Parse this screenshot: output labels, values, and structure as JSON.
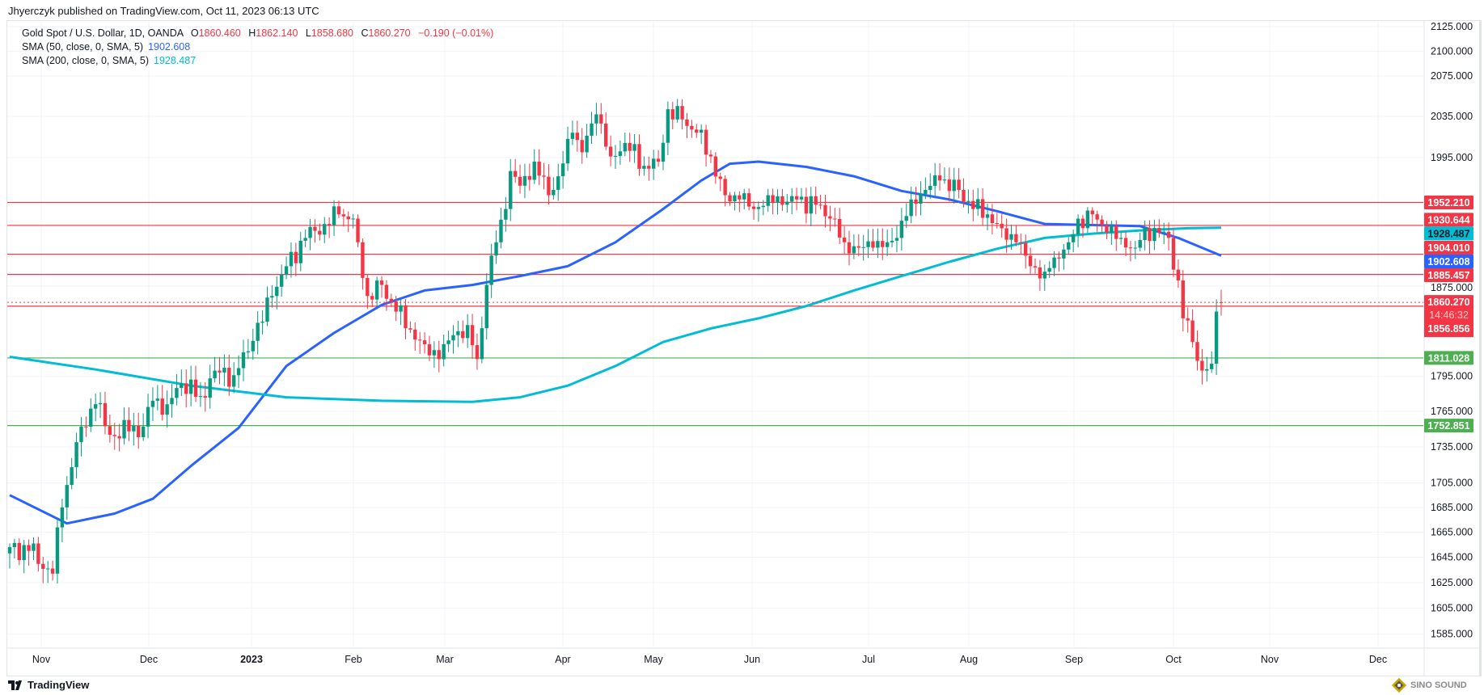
{
  "publisher": "Jhyerczyk published on TradingView.com, Oct 11, 2023 06:13 UTC",
  "legend": {
    "symbol": "Gold Spot / U.S. Dollar, 1D, OANDA",
    "o_label": "O",
    "o": "1860.460",
    "h_label": "H",
    "h": "1862.140",
    "l_label": "L",
    "l": "1858.680",
    "c_label": "C",
    "c": "1860.270",
    "change": "−0.190 (−0.01%)",
    "sma50_label": "SMA (50, close, 0, SMA, 5)",
    "sma50": "1902.608",
    "sma200_label": "SMA (200, close, 0, SMA, 5)",
    "sma200": "1928.487"
  },
  "footer": {
    "brand": "TradingView",
    "watermark": "SINO SOUND"
  },
  "colors": {
    "up": "#089981",
    "down": "#f23645",
    "sma50": "#2962ff",
    "sma200": "#00bcd4",
    "resistance": "#f23645",
    "support": "#4caf50"
  },
  "chart_data": {
    "type": "candlestick",
    "title": "Gold Spot / U.S. Dollar, 1D, OANDA",
    "yscale": "log",
    "ylim": [
      1585,
      2125
    ],
    "y_ticks": [
      "2125.000",
      "2100.000",
      "2075.000",
      "2035.000",
      "1995.000",
      "1875.000",
      "1795.000",
      "1765.000",
      "1735.000",
      "1705.000",
      "1685.000",
      "1665.000",
      "1645.000",
      "1625.000",
      "1605.000",
      "1585.000"
    ],
    "x_ticks": [
      "Nov",
      "Dec",
      "2023",
      "Feb",
      "Mar",
      "Apr",
      "May",
      "Jun",
      "Jul",
      "Aug",
      "Sep",
      "Oct",
      "Nov",
      "Dec"
    ],
    "x_unit": "trading-day index (approx.)",
    "close_path": [
      [
        0,
        1653
      ],
      [
        4,
        1650
      ],
      [
        9,
        1632
      ],
      [
        11,
        1685
      ],
      [
        13,
        1718
      ],
      [
        15,
        1752
      ],
      [
        18,
        1771
      ],
      [
        21,
        1745
      ],
      [
        25,
        1748
      ],
      [
        28,
        1752
      ],
      [
        30,
        1774
      ],
      [
        33,
        1771
      ],
      [
        36,
        1789
      ],
      [
        40,
        1778
      ],
      [
        43,
        1800
      ],
      [
        47,
        1796
      ],
      [
        51,
        1826
      ],
      [
        55,
        1866
      ],
      [
        58,
        1893
      ],
      [
        62,
        1919
      ],
      [
        66,
        1932
      ],
      [
        69,
        1941
      ],
      [
        72,
        1937
      ],
      [
        73,
        1915
      ],
      [
        75,
        1866
      ],
      [
        78,
        1876
      ],
      [
        81,
        1852
      ],
      [
        84,
        1836
      ],
      [
        87,
        1823
      ],
      [
        90,
        1810
      ],
      [
        93,
        1831
      ],
      [
        96,
        1840
      ],
      [
        98,
        1810
      ],
      [
        100,
        1876
      ],
      [
        102,
        1915
      ],
      [
        104,
        1946
      ],
      [
        105,
        1982
      ],
      [
        107,
        1968
      ],
      [
        110,
        1991
      ],
      [
        113,
        1959
      ],
      [
        115,
        1977
      ],
      [
        118,
        2019
      ],
      [
        120,
        2000
      ],
      [
        123,
        2037
      ],
      [
        126,
        1996
      ],
      [
        129,
        2009
      ],
      [
        133,
        1987
      ],
      [
        136,
        1991
      ],
      [
        138,
        2042
      ],
      [
        141,
        2032
      ],
      [
        144,
        2019
      ],
      [
        147,
        1996
      ],
      [
        150,
        1959
      ],
      [
        153,
        1955
      ],
      [
        156,
        1946
      ],
      [
        159,
        1959
      ],
      [
        162,
        1950
      ],
      [
        165,
        1955
      ],
      [
        169,
        1950
      ],
      [
        172,
        1937
      ],
      [
        175,
        1915
      ],
      [
        178,
        1910
      ],
      [
        181,
        1910
      ],
      [
        184,
        1915
      ],
      [
        186,
        1919
      ],
      [
        189,
        1955
      ],
      [
        192,
        1964
      ],
      [
        195,
        1973
      ],
      [
        199,
        1964
      ],
      [
        202,
        1946
      ],
      [
        205,
        1941
      ],
      [
        208,
        1928
      ],
      [
        211,
        1915
      ],
      [
        214,
        1893
      ],
      [
        217,
        1888
      ],
      [
        219,
        1901
      ],
      [
        222,
        1915
      ],
      [
        224,
        1937
      ],
      [
        227,
        1941
      ],
      [
        230,
        1924
      ],
      [
        233,
        1919
      ],
      [
        236,
        1910
      ],
      [
        238,
        1928
      ],
      [
        241,
        1924
      ],
      [
        243,
        1919
      ],
      [
        245,
        1880
      ],
      [
        246,
        1846
      ],
      [
        248,
        1825
      ],
      [
        250,
        1800
      ],
      [
        252,
        1806
      ],
      [
        253,
        1852
      ],
      [
        254,
        1860.27
      ]
    ],
    "series": [
      {
        "name": "SMA 50",
        "value": "1902.608",
        "points": [
          [
            0,
            1695
          ],
          [
            12,
            1672
          ],
          [
            22,
            1680
          ],
          [
            30,
            1692
          ],
          [
            38,
            1719
          ],
          [
            48,
            1751
          ],
          [
            58,
            1804
          ],
          [
            68,
            1833
          ],
          [
            78,
            1858
          ],
          [
            87,
            1871
          ],
          [
            97,
            1876
          ],
          [
            107,
            1884
          ],
          [
            117,
            1893
          ],
          [
            127,
            1915
          ],
          [
            137,
            1946
          ],
          [
            145,
            1973
          ],
          [
            151,
            1989
          ],
          [
            157,
            1991
          ],
          [
            167,
            1986
          ],
          [
            177,
            1977
          ],
          [
            187,
            1963
          ],
          [
            197,
            1955
          ],
          [
            207,
            1944
          ],
          [
            217,
            1932
          ],
          [
            227,
            1931
          ],
          [
            237,
            1930
          ],
          [
            245,
            1919
          ],
          [
            254,
            1902.608
          ]
        ]
      },
      {
        "name": "SMA 200",
        "value": "1928.487",
        "points": [
          [
            0,
            1812
          ],
          [
            18,
            1801
          ],
          [
            38,
            1787
          ],
          [
            58,
            1777
          ],
          [
            78,
            1774
          ],
          [
            97,
            1773
          ],
          [
            107,
            1777
          ],
          [
            117,
            1787
          ],
          [
            127,
            1804
          ],
          [
            137,
            1825
          ],
          [
            147,
            1837
          ],
          [
            157,
            1846
          ],
          [
            167,
            1857
          ],
          [
            177,
            1871
          ],
          [
            187,
            1884
          ],
          [
            197,
            1897
          ],
          [
            207,
            1909
          ],
          [
            217,
            1919
          ],
          [
            227,
            1923
          ],
          [
            237,
            1926
          ],
          [
            247,
            1928
          ],
          [
            254,
            1928.487
          ]
        ]
      }
    ],
    "levels": [
      {
        "label": "1952.210",
        "value": 1952.21,
        "kind": "resistance"
      },
      {
        "label": "1930.644",
        "value": 1930.644,
        "kind": "resistance"
      },
      {
        "label": "1904.010",
        "value": 1904.01,
        "kind": "resistance"
      },
      {
        "label": "1885.457",
        "value": 1885.457,
        "kind": "resistance"
      },
      {
        "label": "1856.856",
        "value": 1856.856,
        "kind": "resistance"
      },
      {
        "label": "1811.028",
        "value": 1811.028,
        "kind": "support"
      },
      {
        "label": "1752.851",
        "value": 1752.851,
        "kind": "support"
      }
    ],
    "last_price": {
      "label": "1860.270",
      "value": 1860.27,
      "countdown": "14:46:32"
    },
    "sma_tags": [
      {
        "label": "1928.487",
        "value": 1928.487
      },
      {
        "label": "1902.608",
        "value": 1902.608
      }
    ]
  }
}
